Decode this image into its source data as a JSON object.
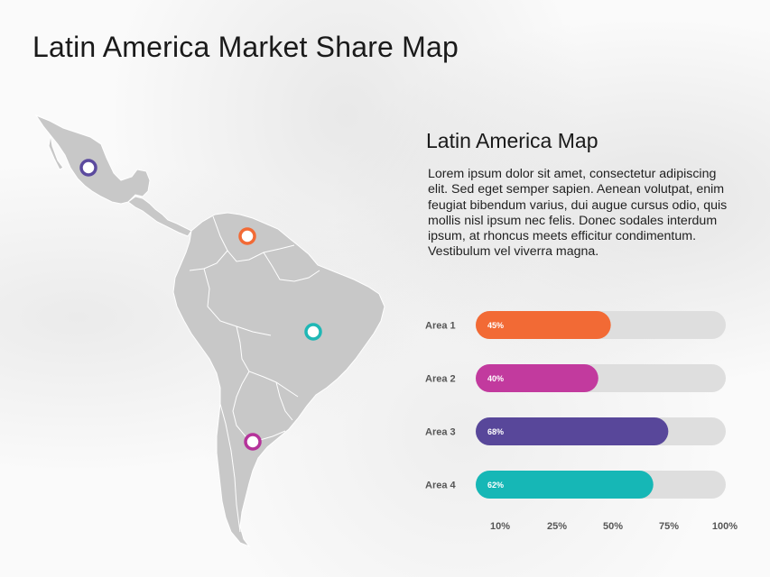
{
  "title": "Latin America Market Share Map",
  "subtitle": "Latin America Map",
  "description": "Lorem ipsum dolor sit amet, consectetur adipiscing elit. Sed eget semper sapien. Aenean volutpat, enim feugiat bibendum varius, dui augue cursus odio, quis mollis nisl ipsum nec felis. Donec sodales interdum ipsum, at rhoncus meets efficitur condimentum. Vestibulum vel viverra magna.",
  "map_markers": [
    {
      "color": "#5b4a9e"
    },
    {
      "color": "#f26a35"
    },
    {
      "color": "#1fb7b5"
    },
    {
      "color": "#b5339a"
    }
  ],
  "chart_data": {
    "type": "bar",
    "orientation": "horizontal",
    "categories": [
      "Area 1",
      "Area 2",
      "Area 3",
      "Area 4"
    ],
    "values": [
      45,
      40,
      68,
      62
    ],
    "value_labels": [
      "45%",
      "40%",
      "68%",
      "62%"
    ],
    "colors": [
      "#f26a35",
      "#c23a9e",
      "#58479a",
      "#16b7b6"
    ],
    "track_color": "#dedede",
    "x_ticks": [
      "10%",
      "25%",
      "50%",
      "75%",
      "100%"
    ],
    "title": "",
    "xlabel": "",
    "ylabel": ""
  }
}
